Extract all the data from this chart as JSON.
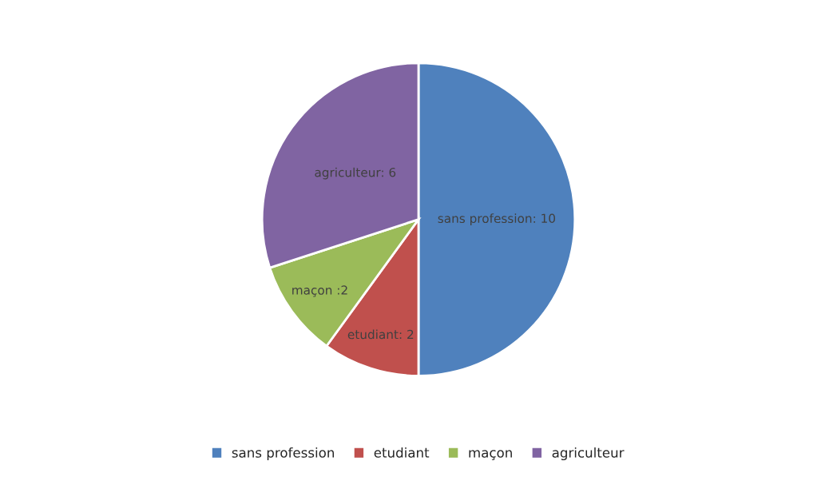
{
  "chart_data": {
    "type": "pie",
    "categories": [
      "sans profession",
      "etudiant",
      "maçon",
      "agriculteur"
    ],
    "values": [
      10,
      2,
      2,
      6
    ],
    "colors": [
      "#4f81bd",
      "#c0504d",
      "#9bbb59",
      "#8064a2"
    ],
    "value_labels": [
      "sans profession: 10",
      "etudiant: 2",
      "maçon :2",
      "agriculteur: 6"
    ],
    "legend": "bottom"
  }
}
